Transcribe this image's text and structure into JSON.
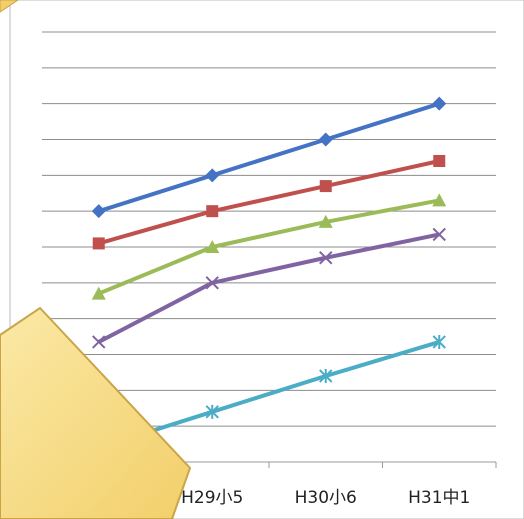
{
  "chart_data": {
    "type": "line",
    "categories": [
      null,
      "H29小5",
      "H30小6",
      "H31中1"
    ],
    "series": [
      {
        "color": "#4472c4",
        "marker": "diamond",
        "values": [
          7.0,
          8.0,
          9.0,
          10.0
        ]
      },
      {
        "color": "#c0504d",
        "marker": "square",
        "values": [
          6.1,
          7.0,
          7.7,
          8.4
        ]
      },
      {
        "color": "#9bbb59",
        "marker": "triangle",
        "values": [
          4.7,
          6.0,
          6.7,
          7.3
        ]
      },
      {
        "color": "#8064a2",
        "marker": "x",
        "values": [
          3.35,
          5.0,
          5.7,
          6.35
        ]
      },
      {
        "color": "#4bacc6",
        "marker": "star",
        "values": [
          0.4,
          1.4,
          2.4,
          3.35
        ]
      }
    ],
    "ylim": [
      0,
      12
    ],
    "yticks": [
      0,
      1,
      2,
      3,
      4,
      5,
      6,
      7,
      8,
      9,
      10,
      11,
      12
    ],
    "grid": true
  }
}
